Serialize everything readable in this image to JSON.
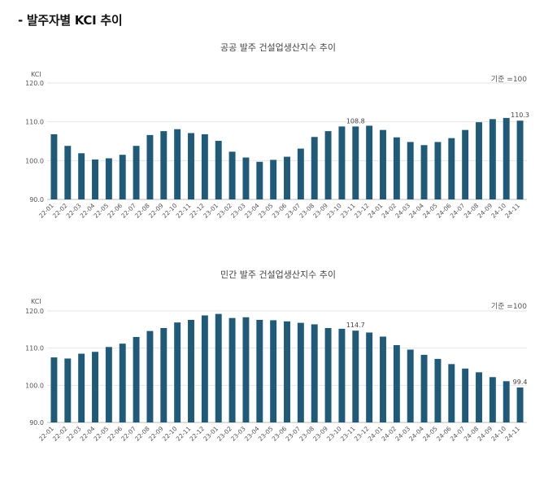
{
  "section_title": "- 발주자별 KCI 추이",
  "chart_data": [
    {
      "type": "bar",
      "title": "공공 발주 건설업생산지수 추이",
      "ylabel": "KCI",
      "basis_note": "기준 =100",
      "ylim": [
        90,
        120
      ],
      "yticks": [
        "120.0",
        "110.0",
        "100.0",
        "90.0"
      ],
      "bar_color": "#1f5a78",
      "categories": [
        "22-01",
        "22-02",
        "22-03",
        "22-04",
        "22-05",
        "22-06",
        "22-07",
        "22-08",
        "22-09",
        "22-10",
        "22-11",
        "22-12",
        "23-01",
        "23-02",
        "23-03",
        "23-04",
        "23-05",
        "23-06",
        "23-07",
        "23-08",
        "23-09",
        "23-10",
        "23-11",
        "23-12",
        "24-01",
        "24-02",
        "24-03",
        "24-04",
        "24-05",
        "24-06",
        "24-07",
        "24-08",
        "24-09",
        "24-10",
        "24-11"
      ],
      "values": [
        106.8,
        103.8,
        101.9,
        100.3,
        100.6,
        101.5,
        103.8,
        106.6,
        107.6,
        108.1,
        107.1,
        106.8,
        105.1,
        102.3,
        100.8,
        99.7,
        100.2,
        101.0,
        103.1,
        106.1,
        107.6,
        108.8,
        108.8,
        109.0,
        107.9,
        106.0,
        104.8,
        104.0,
        104.8,
        105.8,
        107.9,
        109.9,
        110.7,
        111.0,
        110.3
      ],
      "value_labels": [
        {
          "index": 22,
          "text": "108.8"
        },
        {
          "index": 34,
          "text": "110.3"
        }
      ]
    },
    {
      "type": "bar",
      "title": "민간 발주 건설업생산지수 추이",
      "ylabel": "KCI",
      "basis_note": "기준 =100",
      "ylim": [
        90,
        120
      ],
      "yticks": [
        "120.0",
        "110.0",
        "100.0",
        "90.0"
      ],
      "bar_color": "#1f5a78",
      "categories": [
        "22-01",
        "22-02",
        "22-03",
        "22-04",
        "22-05",
        "22-06",
        "22-07",
        "22-08",
        "22-09",
        "22-10",
        "22-11",
        "22-12",
        "23-01",
        "23-02",
        "23-03",
        "23-04",
        "23-05",
        "23-06",
        "23-07",
        "23-08",
        "23-09",
        "23-10",
        "23-11",
        "23-12",
        "24-01",
        "24-02",
        "24-03",
        "24-04",
        "24-05",
        "24-06",
        "24-07",
        "24-08",
        "24-09",
        "24-10",
        "24-11"
      ],
      "values": [
        107.5,
        107.2,
        108.5,
        109.0,
        110.3,
        111.2,
        113.0,
        114.6,
        115.4,
        116.9,
        117.6,
        118.8,
        119.2,
        118.1,
        118.3,
        117.6,
        117.5,
        117.2,
        116.8,
        116.4,
        115.4,
        115.2,
        114.7,
        114.2,
        113.1,
        110.8,
        109.6,
        108.2,
        107.1,
        105.7,
        104.5,
        103.5,
        102.2,
        101.1,
        99.4
      ],
      "value_labels": [
        {
          "index": 22,
          "text": "114.7"
        },
        {
          "index": 34,
          "text": "99.4"
        }
      ]
    }
  ]
}
